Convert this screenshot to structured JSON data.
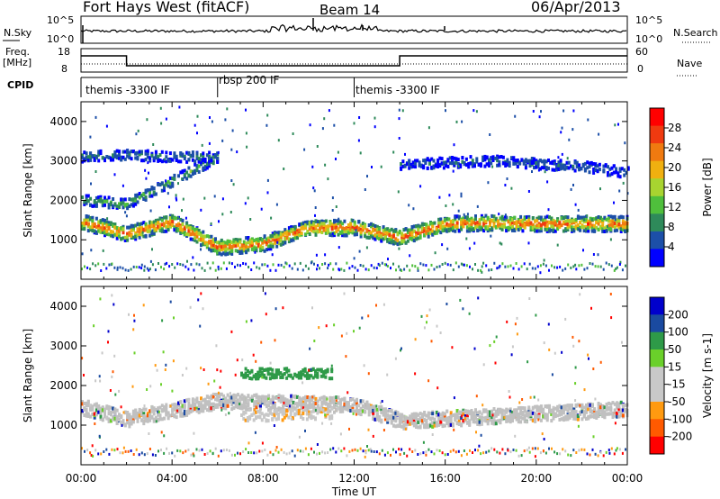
{
  "header": {
    "station": "Fort Hays West (fitACF)",
    "beam": "Beam 14",
    "date": "06/Apr/2013"
  },
  "panels": {
    "nsky": {
      "label": "N.Sky",
      "left_ticks": [
        "10^5",
        "10^0"
      ],
      "right_ticks": [
        "10^5",
        "10^0"
      ],
      "right_label": "N.Search"
    },
    "freq": {
      "label": "Freq.",
      "unit": "[MHz]",
      "left_ticks": [
        "18",
        "8"
      ],
      "right_ticks": [
        "60",
        "0"
      ],
      "right_label": "Nave"
    },
    "cpid": {
      "label": "CPID",
      "segments": [
        {
          "name": "themis -3300 IF",
          "start_hour": 0,
          "end_hour": 6
        },
        {
          "name": "rbsp 200 IF",
          "start_hour": 6,
          "end_hour": 12
        },
        {
          "name": "themis -3300 IF",
          "start_hour": 12,
          "end_hour": 24
        }
      ]
    }
  },
  "colors": {
    "power_scale": [
      "#0000ff",
      "#1c4fa8",
      "#2e8a5a",
      "#4fbf3c",
      "#a8d430",
      "#f0b010",
      "#f07a10",
      "#f03a10",
      "#ff0000"
    ],
    "velocity_scale": [
      "#ff0000",
      "#ff5a00",
      "#ff9a10",
      "#c8c8c8",
      "#c8c8c8",
      "#6ad02a",
      "#2e9a48",
      "#1a4aa0",
      "#0000cc"
    ],
    "ground_scatter": "#c0c0c0"
  },
  "chart_data": [
    {
      "type": "heatmap",
      "title": "",
      "xlabel": "Time UT",
      "ylabel": "Slant Range [km]",
      "colorbar_label": "Power [dB]",
      "colorbar_ticks": [
        "28",
        "24",
        "20",
        "16",
        "12",
        "8",
        "4"
      ],
      "colorbar_range": [
        0,
        32
      ],
      "xlim": [
        0,
        24
      ],
      "ylim": [
        0,
        4500
      ],
      "x_ticks": [
        "00:00",
        "04:00",
        "08:00",
        "12:00",
        "16:00",
        "20:00",
        "00:00"
      ],
      "y_ticks": [
        "1000",
        "2000",
        "3000",
        "4000"
      ],
      "bands": [
        {
          "feature": "main echo",
          "hours": [
            0,
            2,
            4,
            6,
            8,
            10,
            12,
            14,
            16,
            18,
            20,
            22,
            24
          ],
          "range_km": [
            1450,
            1150,
            1450,
            800,
            900,
            1300,
            1300,
            1050,
            1400,
            1420,
            1400,
            1400,
            1400
          ],
          "power_db": 26
        },
        {
          "feature": "upper echo",
          "hours": [
            0,
            2,
            4,
            6
          ],
          "range_km": [
            2000,
            1900,
            2500,
            3100
          ],
          "power_db": 12
        },
        {
          "feature": "far echo",
          "hours": [
            0,
            2,
            4,
            6
          ],
          "range_km": [
            3100,
            3150,
            3100,
            3100
          ],
          "power_db": 8
        },
        {
          "feature": "late far echo",
          "hours": [
            14,
            18,
            22,
            24
          ],
          "range_km": [
            2900,
            3000,
            2850,
            2700
          ],
          "power_db": 6
        }
      ]
    },
    {
      "type": "heatmap",
      "title": "",
      "xlabel": "Time UT",
      "ylabel": "Slant Range [km]",
      "colorbar_label": "Velocity [m s-1]",
      "colorbar_ticks": [
        "200",
        "100",
        "50",
        "15",
        "-15",
        "-50",
        "-100",
        "-200"
      ],
      "colorbar_range": [
        -250,
        250
      ],
      "xlim": [
        0,
        24
      ],
      "ylim": [
        0,
        4500
      ],
      "x_ticks": [
        "00:00",
        "04:00",
        "08:00",
        "12:00",
        "16:00",
        "20:00",
        "00:00"
      ],
      "y_ticks": [
        "1000",
        "2000",
        "3000",
        "4000"
      ],
      "bands": [
        {
          "feature": "ground scatter",
          "hours": [
            0,
            2,
            6,
            12,
            14,
            24
          ],
          "range_km": [
            1450,
            1150,
            1600,
            1500,
            1100,
            1400
          ],
          "velocity": 0
        },
        {
          "feature": "ionospheric scatter",
          "hours": [
            7,
            9,
            11
          ],
          "range_km": [
            1200,
            1250,
            1300
          ],
          "velocity": -80
        },
        {
          "feature": "high range scatter",
          "hours": [
            7,
            9,
            11
          ],
          "range_km": [
            2300,
            2300,
            2300
          ],
          "velocity": 120
        }
      ]
    }
  ]
}
